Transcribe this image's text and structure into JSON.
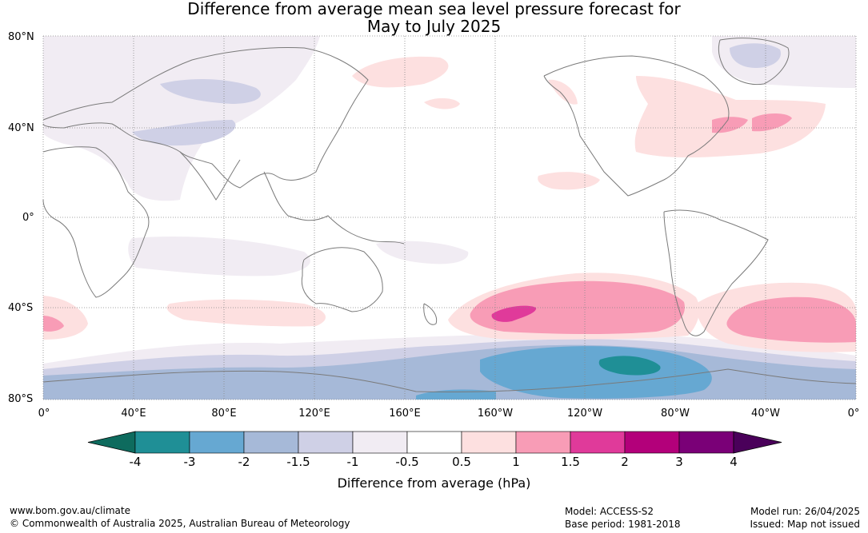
{
  "title_line1": "Difference from average mean sea level pressure forecast for",
  "title_line2": "May to July 2025",
  "lat_labels": [
    "80°N",
    "40°N",
    "0°",
    "40°S",
    "80°S"
  ],
  "lon_labels": [
    "0°",
    "40°E",
    "80°E",
    "120°E",
    "160°E",
    "160°W",
    "120°W",
    "80°W",
    "40°W",
    "0°"
  ],
  "colorbar": {
    "ticks": [
      "-4",
      "-3",
      "-2",
      "-1.5",
      "-1",
      "-0.5",
      "0.5",
      "1",
      "1.5",
      "2",
      "3",
      "4"
    ],
    "colors": [
      "#0e6b5e",
      "#1f8f96",
      "#66a8d2",
      "#a6b9d8",
      "#cfd0e6",
      "#f1ecf3",
      "#ffffff",
      "#fde0e0",
      "#f89cb6",
      "#e03a9a",
      "#b3007a",
      "#7a0077",
      "#4a005a"
    ],
    "label": "Difference from average (hPa)"
  },
  "footer": {
    "url": "www.bom.gov.au/climate",
    "copyright": "© Commonwealth of Australia 2025, Australian Bureau of Meteorology",
    "model": "Model: ACCESS-S2",
    "base_period": "Base period: 1981-2018",
    "model_run": "Model run: 26/04/2025",
    "issued": "Issued: Map not issued"
  }
}
